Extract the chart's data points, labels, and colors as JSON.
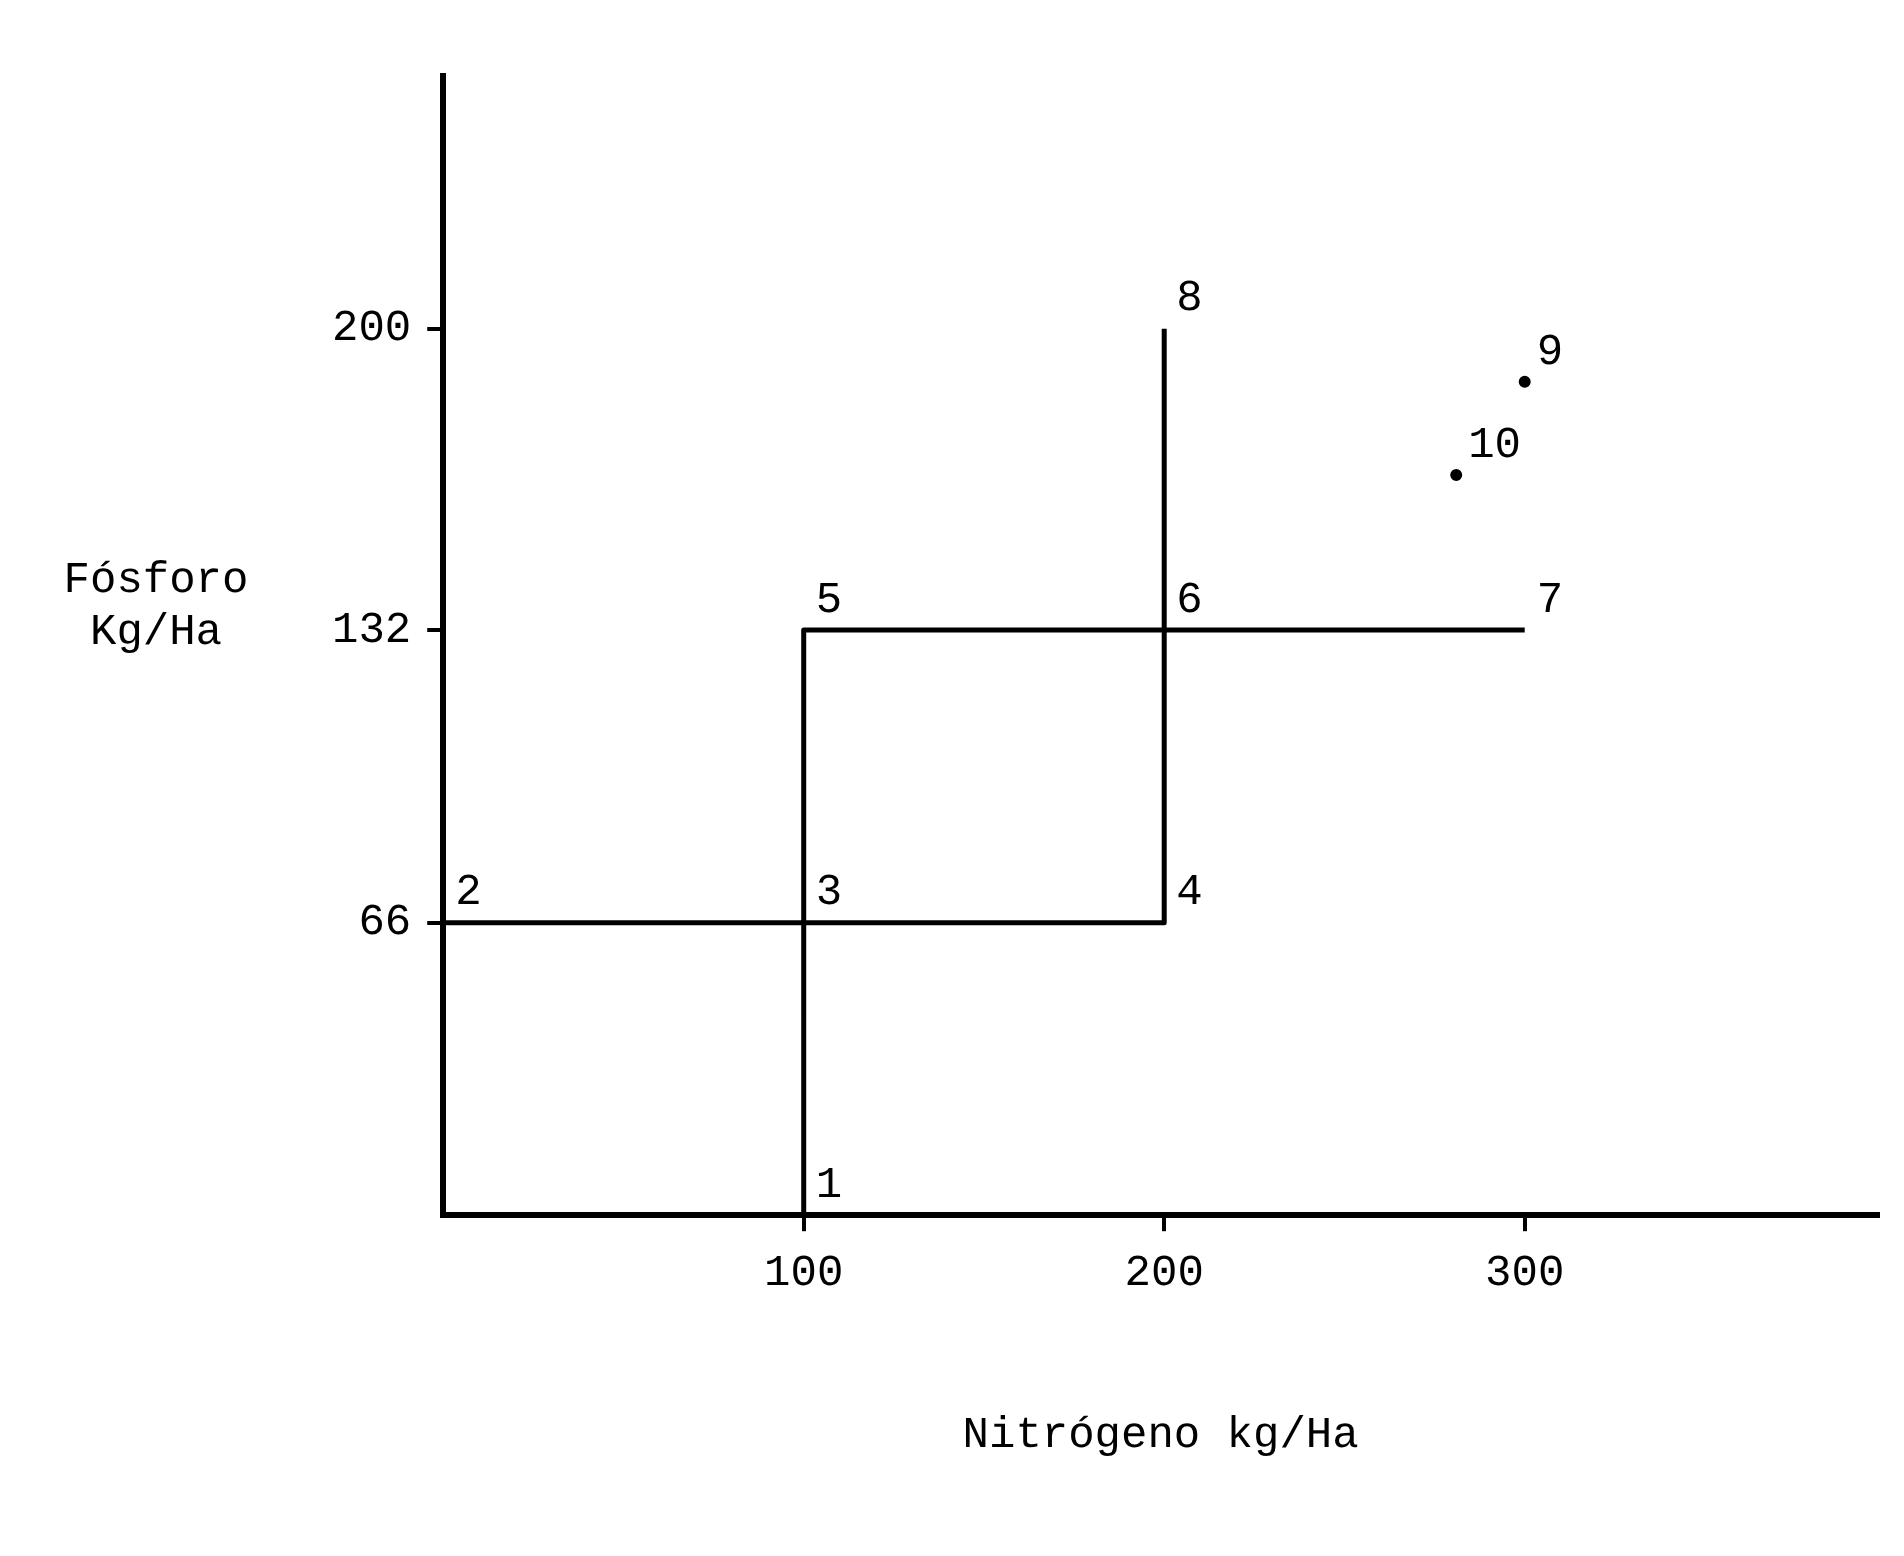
{
  "chart_data": {
    "type": "line",
    "xlabel": "Nitrógeno kg/Ha",
    "ylabel": "Fósforo Kg/Ha",
    "xlim": [
      0,
      398
    ],
    "xticks": [
      100,
      200,
      300
    ],
    "ylim": [
      0,
      257
    ],
    "yticks": [
      66,
      132,
      200
    ],
    "grid": false,
    "legend": false,
    "marker": "none",
    "series": [
      {
        "color": "#000000",
        "x": [
          100,
          100,
          300
        ],
        "values": [
          0,
          132,
          132
        ]
      },
      {
        "color": "#000000",
        "x": [
          0,
          200,
          200
        ],
        "values": [
          66,
          66,
          200
        ]
      },
      {
        "type": "scatter",
        "color": "#000000",
        "x": [
          300,
          281
        ],
        "values": [
          188,
          167
        ],
        "marker": "circle"
      }
    ],
    "annotations": [
      {
        "text": "1",
        "x": 100,
        "y": 0
      },
      {
        "text": "2",
        "x": 0,
        "y": 66
      },
      {
        "text": "3",
        "x": 100,
        "y": 66
      },
      {
        "text": "4",
        "x": 200,
        "y": 66
      },
      {
        "text": "5",
        "x": 100,
        "y": 132
      },
      {
        "text": "6",
        "x": 200,
        "y": 132
      },
      {
        "text": "7",
        "x": 300,
        "y": 132
      },
      {
        "text": "8",
        "x": 200,
        "y": 200
      },
      {
        "text": "9",
        "x": 300,
        "y": 188
      },
      {
        "text": "10",
        "x": 281,
        "y": 167
      }
    ]
  }
}
